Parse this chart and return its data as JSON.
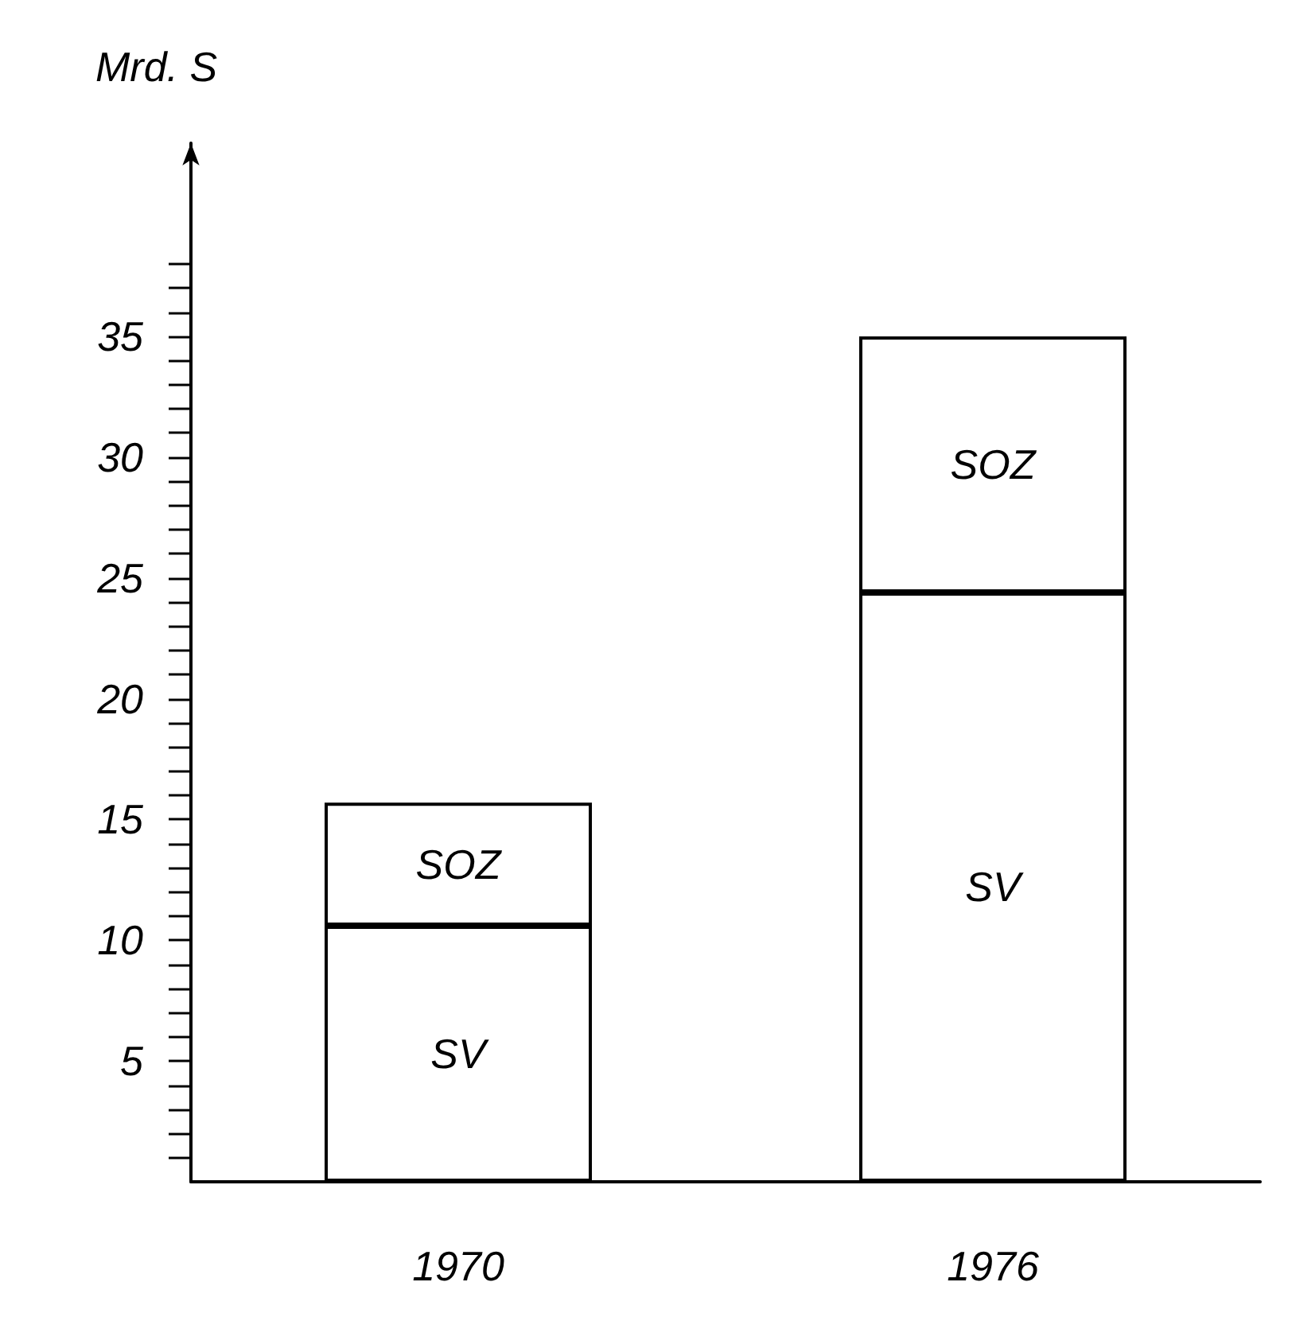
{
  "chart_data": {
    "type": "bar",
    "stacked": true,
    "ylabel": "Mrd. S",
    "categories": [
      "1970",
      "1976"
    ],
    "series": [
      {
        "name": "SV",
        "color": "#ffffff",
        "values": [
          10.6,
          24.4
        ]
      },
      {
        "name": "SOZ",
        "color": "#ffffff",
        "values": [
          5.1,
          10.6
        ]
      }
    ],
    "ylim": [
      0,
      43
    ],
    "yticks": [
      {
        "value": 1,
        "label": null
      },
      {
        "value": 2,
        "label": null
      },
      {
        "value": 3,
        "label": null
      },
      {
        "value": 4,
        "label": null
      },
      5,
      {
        "value": 6,
        "label": null
      },
      {
        "value": 7,
        "label": null
      },
      {
        "value": 8,
        "label": null
      },
      {
        "value": 9,
        "label": null
      },
      10,
      {
        "value": 11,
        "label": null
      },
      {
        "value": 12,
        "label": null
      },
      {
        "value": 13,
        "label": null
      },
      {
        "value": 14,
        "label": null
      },
      15,
      {
        "value": 16,
        "label": null
      },
      {
        "value": 17,
        "label": null
      },
      {
        "value": 18,
        "label": null
      },
      {
        "value": 19,
        "label": null
      },
      20,
      {
        "value": 21,
        "label": null
      },
      {
        "value": 22,
        "label": null
      },
      {
        "value": 23,
        "label": null
      },
      {
        "value": 24,
        "label": null
      },
      25,
      {
        "value": 26,
        "label": null
      },
      {
        "value": 27,
        "label": null
      },
      {
        "value": 28,
        "label": null
      },
      {
        "value": 29,
        "label": null
      },
      30,
      {
        "value": 31,
        "label": null
      },
      {
        "value": 32,
        "label": null
      },
      {
        "value": 33,
        "label": null
      },
      {
        "value": 34,
        "label": null
      },
      35,
      {
        "value": 36,
        "label": null
      },
      {
        "value": 37,
        "label": null
      },
      {
        "value": 38,
        "label": null
      }
    ],
    "grid": false,
    "legend": false
  }
}
